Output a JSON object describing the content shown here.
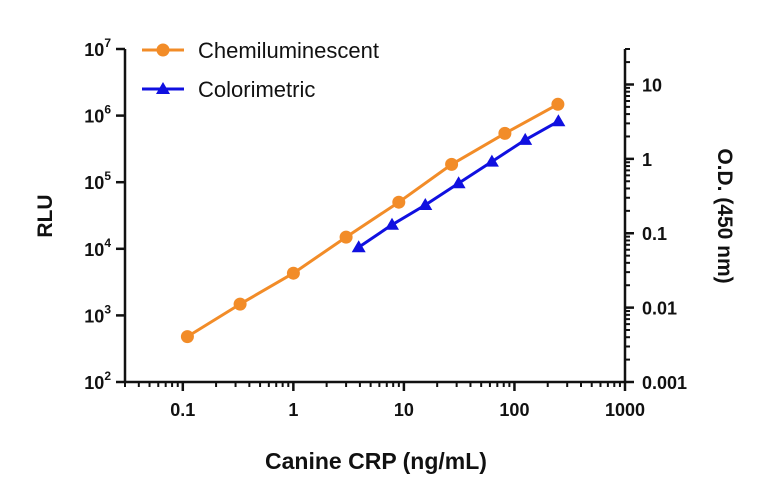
{
  "chart_data": {
    "type": "line",
    "xlabel": "Canine CRP (ng/mL)",
    "ylabel": "RLU",
    "y2label": "O.D. (450 nm)",
    "x_scale": "log",
    "y_scale": "log",
    "y2_scale": "log",
    "xlim": [
      0.03,
      1000
    ],
    "ylim": [
      100,
      10000000
    ],
    "y2lim": [
      0.001,
      30
    ],
    "x_ticks": [
      {
        "value": 0.1,
        "label": "0.1"
      },
      {
        "value": 1,
        "label": "1"
      },
      {
        "value": 10,
        "label": "10"
      },
      {
        "value": 100,
        "label": "100"
      },
      {
        "value": 1000,
        "label": "1000"
      }
    ],
    "y_ticks": [
      {
        "value": 100,
        "base": "10",
        "exp": "2"
      },
      {
        "value": 1000,
        "base": "10",
        "exp": "3"
      },
      {
        "value": 10000,
        "base": "10",
        "exp": "4"
      },
      {
        "value": 100000,
        "base": "10",
        "exp": "5"
      },
      {
        "value": 1000000,
        "base": "10",
        "exp": "6"
      },
      {
        "value": 10000000,
        "base": "10",
        "exp": "7"
      }
    ],
    "y2_ticks": [
      {
        "value": 0.001,
        "label": "0.001"
      },
      {
        "value": 0.01,
        "label": "0.01"
      },
      {
        "value": 0.1,
        "label": "0.1"
      },
      {
        "value": 1,
        "label": "1"
      },
      {
        "value": 10,
        "label": "10"
      }
    ],
    "grid": false,
    "legend_position": "top-left",
    "series": [
      {
        "name": "Chemiluminescent",
        "axis": "left",
        "color": "#F28C28",
        "marker": "circle",
        "x": [
          0.11,
          0.33,
          1.0,
          3.0,
          9.0,
          27.0,
          82.0,
          247.0
        ],
        "y": [
          480,
          1480,
          4300,
          15000,
          50000,
          185000,
          540000,
          1480000
        ]
      },
      {
        "name": "Colorimetric",
        "axis": "right",
        "color": "#1010E0",
        "marker": "triangle",
        "x": [
          3.9,
          7.8,
          15.6,
          31.25,
          62.5,
          125,
          250
        ],
        "y": [
          0.065,
          0.13,
          0.24,
          0.47,
          0.92,
          1.8,
          3.2
        ]
      }
    ]
  }
}
